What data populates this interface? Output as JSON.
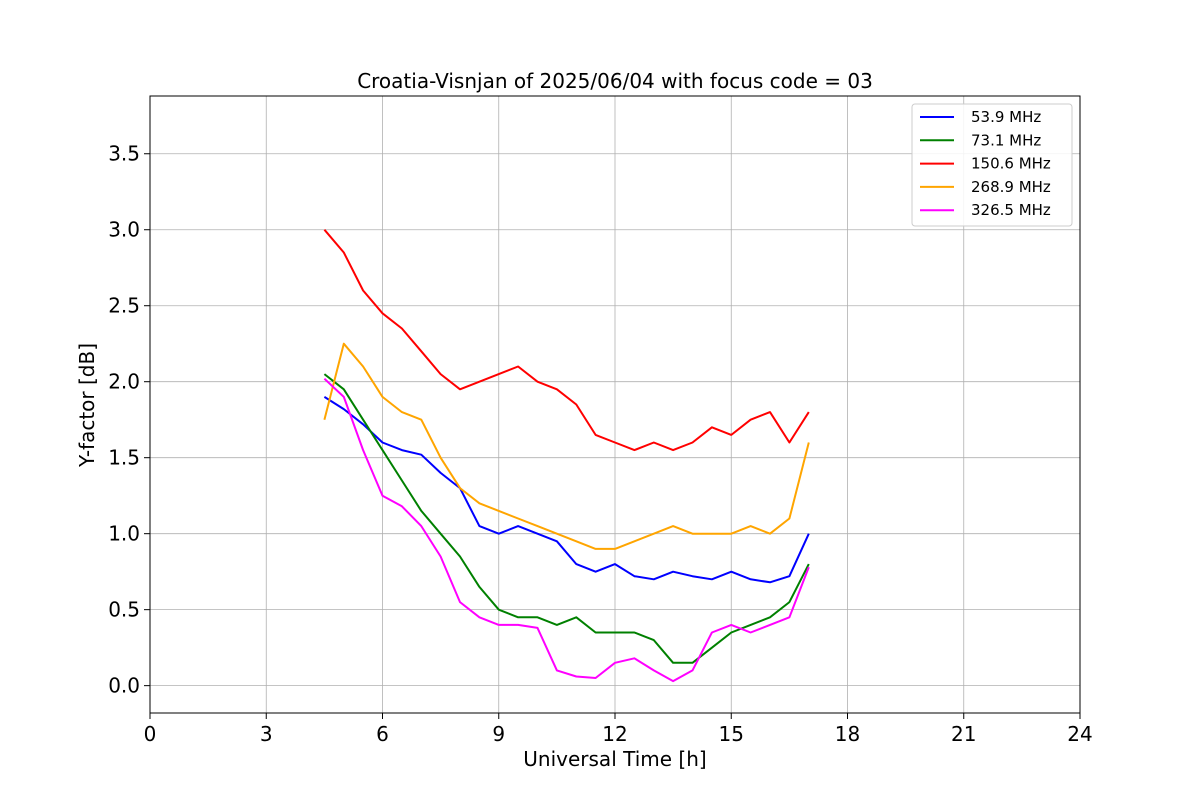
{
  "chart_data": {
    "type": "line",
    "title": "Croatia-Visnjan of 2025/06/04 with focus code = 03",
    "xlabel": "Universal Time [h]",
    "ylabel": "Y-factor [dB]",
    "xlim": [
      0,
      24
    ],
    "ylim": [
      -0.18,
      3.88
    ],
    "xticks": [
      0,
      3,
      6,
      9,
      12,
      15,
      18,
      21,
      24
    ],
    "xtick_labels": [
      "0",
      "3",
      "6",
      "9",
      "12",
      "15",
      "18",
      "21",
      "24"
    ],
    "yticks": [
      0.0,
      0.5,
      1.0,
      1.5,
      2.0,
      2.5,
      3.0,
      3.5
    ],
    "ytick_labels": [
      "0.0",
      "0.5",
      "1.0",
      "1.5",
      "2.0",
      "2.5",
      "3.0",
      "3.5"
    ],
    "grid": true,
    "legend_position": "upper-right",
    "series": [
      {
        "name": "53.9 MHz",
        "legend_label": " 53.9 MHz",
        "color": "#0000ff",
        "x": [
          4.5,
          5.0,
          5.5,
          6.0,
          6.5,
          7.0,
          7.5,
          8.0,
          8.5,
          9.0,
          9.5,
          10.0,
          10.5,
          11.0,
          11.5,
          12.0,
          12.5,
          13.0,
          13.5,
          14.0,
          14.5,
          15.0,
          15.5,
          16.0,
          16.5,
          17.0
        ],
        "y": [
          1.9,
          1.82,
          1.72,
          1.6,
          1.55,
          1.52,
          1.4,
          1.3,
          1.05,
          1.0,
          1.05,
          1.0,
          0.95,
          0.8,
          0.75,
          0.8,
          0.72,
          0.7,
          0.75,
          0.72,
          0.7,
          0.75,
          0.7,
          0.68,
          0.72,
          1.0
        ]
      },
      {
        "name": "73.1 MHz",
        "legend_label": " 73.1 MHz",
        "color": "#008000",
        "x": [
          4.5,
          5.0,
          5.5,
          6.0,
          6.5,
          7.0,
          7.5,
          8.0,
          8.5,
          9.0,
          9.5,
          10.0,
          10.5,
          11.0,
          11.5,
          12.0,
          12.5,
          13.0,
          13.5,
          14.0,
          14.5,
          15.0,
          15.5,
          16.0,
          16.5,
          17.0
        ],
        "y": [
          2.05,
          1.95,
          1.75,
          1.55,
          1.35,
          1.15,
          1.0,
          0.85,
          0.65,
          0.5,
          0.45,
          0.45,
          0.4,
          0.45,
          0.35,
          0.35,
          0.35,
          0.3,
          0.15,
          0.15,
          0.25,
          0.35,
          0.4,
          0.45,
          0.55,
          0.8
        ]
      },
      {
        "name": "150.6 MHz",
        "legend_label": "150.6 MHz",
        "color": "#ff0000",
        "x": [
          4.5,
          5.0,
          5.5,
          6.0,
          6.5,
          7.0,
          7.5,
          8.0,
          8.5,
          9.0,
          9.5,
          10.0,
          10.5,
          11.0,
          11.5,
          12.0,
          12.5,
          13.0,
          13.5,
          14.0,
          14.5,
          15.0,
          15.5,
          16.0,
          16.5,
          17.0
        ],
        "y": [
          3.0,
          2.85,
          2.6,
          2.45,
          2.35,
          2.2,
          2.05,
          1.95,
          2.0,
          2.05,
          2.1,
          2.0,
          1.95,
          1.85,
          1.65,
          1.6,
          1.55,
          1.6,
          1.55,
          1.6,
          1.7,
          1.65,
          1.75,
          1.8,
          1.6,
          1.8
        ]
      },
      {
        "name": "268.9 MHz",
        "legend_label": "268.9 MHz",
        "color": "#ffa500",
        "x": [
          4.5,
          5.0,
          5.5,
          6.0,
          6.5,
          7.0,
          7.5,
          8.0,
          8.5,
          9.0,
          9.5,
          10.0,
          10.5,
          11.0,
          11.5,
          12.0,
          12.5,
          13.0,
          13.5,
          14.0,
          14.5,
          15.0,
          15.5,
          16.0,
          16.5,
          17.0
        ],
        "y": [
          1.75,
          2.25,
          2.1,
          1.9,
          1.8,
          1.75,
          1.5,
          1.3,
          1.2,
          1.15,
          1.1,
          1.05,
          1.0,
          0.95,
          0.9,
          0.9,
          0.95,
          1.0,
          1.05,
          1.0,
          1.0,
          1.0,
          1.05,
          1.0,
          1.1,
          1.6
        ]
      },
      {
        "name": "326.5 MHz",
        "legend_label": "326.5 MHz",
        "color": "#ff00ff",
        "x": [
          4.5,
          5.0,
          5.5,
          6.0,
          6.5,
          7.0,
          7.5,
          8.0,
          8.5,
          9.0,
          9.5,
          10.0,
          10.5,
          11.0,
          11.5,
          12.0,
          12.5,
          13.0,
          13.5,
          14.0,
          14.5,
          15.0,
          15.5,
          16.0,
          16.5,
          17.0
        ],
        "y": [
          2.02,
          1.9,
          1.55,
          1.25,
          1.18,
          1.05,
          0.85,
          0.55,
          0.45,
          0.4,
          0.4,
          0.38,
          0.1,
          0.06,
          0.05,
          0.15,
          0.18,
          0.1,
          0.03,
          0.1,
          0.35,
          0.4,
          0.35,
          0.4,
          0.45,
          0.78
        ]
      }
    ]
  }
}
